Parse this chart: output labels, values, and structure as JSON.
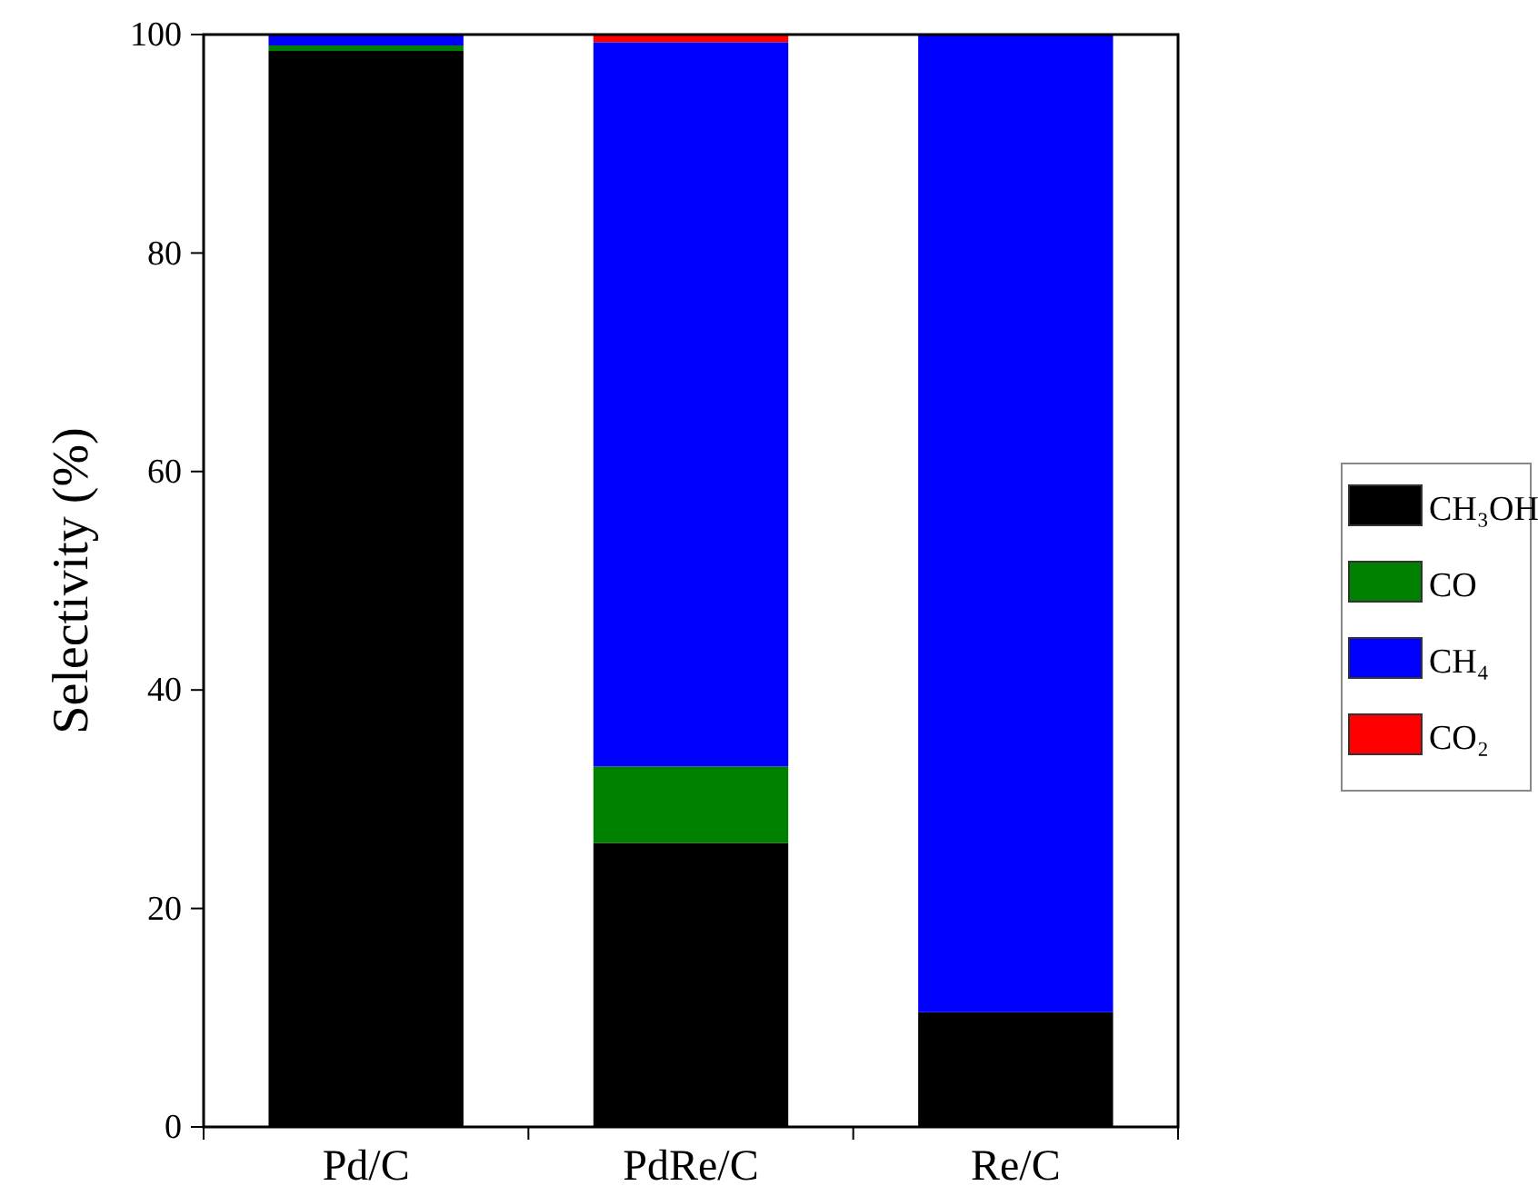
{
  "chart_data": {
    "type": "bar",
    "stacked": true,
    "ylabel": "Selectivity (%)",
    "categories": [
      "Pd/C",
      "PdRe/C",
      "Re/C"
    ],
    "ylim": [
      0,
      100
    ],
    "yticks": [
      0,
      20,
      40,
      60,
      80,
      100
    ],
    "legend": "right",
    "grid": false,
    "series": [
      {
        "name": "CH₃OH",
        "color": "#000000",
        "values": [
          98.5,
          26,
          10.5
        ]
      },
      {
        "name": "CO",
        "color": "#008000",
        "values": [
          0.5,
          7,
          0
        ]
      },
      {
        "name": "CH₄",
        "color": "#0000ff",
        "values": [
          1,
          66.3,
          89.5
        ]
      },
      {
        "name": "CO₂",
        "color": "#ff0000",
        "values": [
          0,
          0.7,
          0
        ]
      }
    ]
  }
}
